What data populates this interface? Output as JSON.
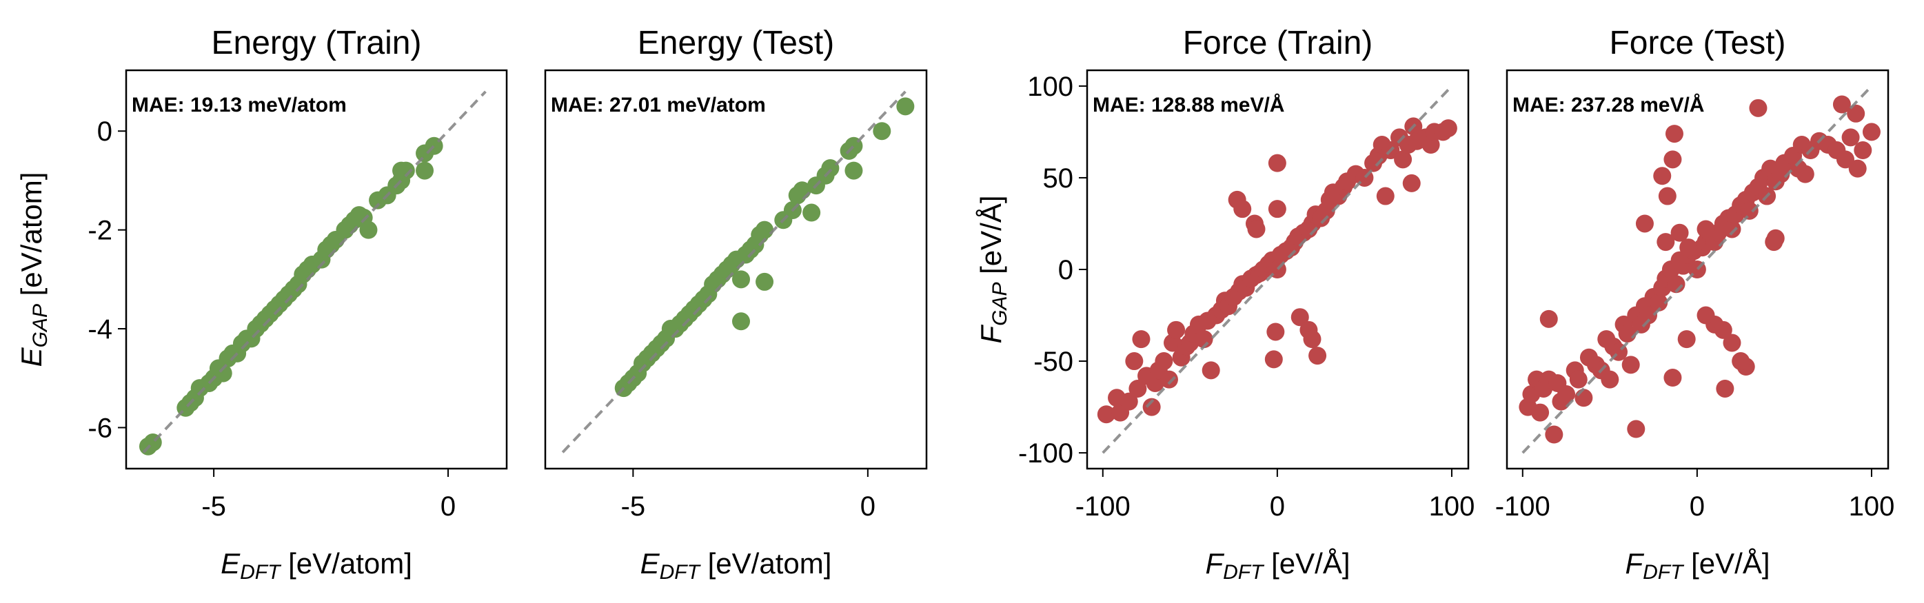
{
  "colors": {
    "energy": "#6a994e",
    "force": "#bc4749",
    "diagonal": "#808080",
    "diagonal_inner": "#222222"
  },
  "chart_data": [
    {
      "type": "scatter",
      "title": "Energy (Train)",
      "annotation": "MAE: 19.13 meV/atom",
      "xlabel": {
        "var": "E",
        "sub": "DFT",
        "unit": " [eV/atom]"
      },
      "ylabel": {
        "var": "E",
        "sub": "GAP",
        "unit": " [eV/atom]"
      },
      "xlim": [
        -6.87,
        1.25
      ],
      "ylim": [
        -6.83,
        1.23
      ],
      "xticks": [
        -5,
        0
      ],
      "xtick_labels": [
        "-5",
        "0"
      ],
      "yticks": [
        0,
        -2,
        -4,
        -6
      ],
      "ytick_labels": [
        "0",
        "-2",
        "-4",
        "-6"
      ],
      "diagonal": [
        -6.5,
        0.8
      ],
      "color_key": "energy",
      "points": [
        [
          -6.4,
          -6.38
        ],
        [
          -6.3,
          -6.3
        ],
        [
          -5.6,
          -5.6
        ],
        [
          -5.5,
          -5.5
        ],
        [
          -5.4,
          -5.4
        ],
        [
          -5.3,
          -5.2
        ],
        [
          -5.1,
          -5.1
        ],
        [
          -5.0,
          -5.0
        ],
        [
          -4.9,
          -4.8
        ],
        [
          -4.8,
          -4.9
        ],
        [
          -4.7,
          -4.6
        ],
        [
          -4.6,
          -4.5
        ],
        [
          -4.5,
          -4.5
        ],
        [
          -4.4,
          -4.3
        ],
        [
          -4.3,
          -4.2
        ],
        [
          -4.2,
          -4.2
        ],
        [
          -4.1,
          -4.0
        ],
        [
          -4.0,
          -3.9
        ],
        [
          -3.9,
          -3.8
        ],
        [
          -3.8,
          -3.7
        ],
        [
          -3.7,
          -3.6
        ],
        [
          -3.6,
          -3.5
        ],
        [
          -3.5,
          -3.4
        ],
        [
          -3.4,
          -3.3
        ],
        [
          -3.3,
          -3.2
        ],
        [
          -3.2,
          -3.1
        ],
        [
          -3.1,
          -2.9
        ],
        [
          -3.0,
          -2.8
        ],
        [
          -2.9,
          -2.7
        ],
        [
          -2.7,
          -2.6
        ],
        [
          -2.6,
          -2.4
        ],
        [
          -2.5,
          -2.3
        ],
        [
          -2.4,
          -2.2
        ],
        [
          -2.2,
          -2.0
        ],
        [
          -2.1,
          -1.9
        ],
        [
          -2.0,
          -1.8
        ],
        [
          -1.9,
          -1.7
        ],
        [
          -1.8,
          -1.75
        ],
        [
          -1.7,
          -2.0
        ],
        [
          -1.5,
          -1.4
        ],
        [
          -1.3,
          -1.3
        ],
        [
          -1.1,
          -1.1
        ],
        [
          -1.0,
          -1.0
        ],
        [
          -1.0,
          -0.8
        ],
        [
          -0.9,
          -0.8
        ],
        [
          -0.5,
          -0.45
        ],
        [
          -0.5,
          -0.8
        ],
        [
          -0.3,
          -0.3
        ]
      ]
    },
    {
      "type": "scatter",
      "title": "Energy (Test)",
      "annotation": "MAE: 27.01 meV/atom",
      "xlabel": {
        "var": "E",
        "sub": "DFT",
        "unit": " [eV/atom]"
      },
      "xlim": [
        -6.87,
        1.25
      ],
      "ylim": [
        -6.83,
        1.23
      ],
      "xticks": [
        -5,
        0
      ],
      "xtick_labels": [
        "-5",
        "0"
      ],
      "diagonal": [
        -6.5,
        0.8
      ],
      "color_key": "energy",
      "points": [
        [
          -5.2,
          -5.2
        ],
        [
          -5.1,
          -5.1
        ],
        [
          -5.0,
          -5.0
        ],
        [
          -4.9,
          -4.9
        ],
        [
          -4.8,
          -4.7
        ],
        [
          -4.7,
          -4.6
        ],
        [
          -4.6,
          -4.5
        ],
        [
          -4.5,
          -4.4
        ],
        [
          -4.4,
          -4.3
        ],
        [
          -4.3,
          -4.2
        ],
        [
          -4.2,
          -4.0
        ],
        [
          -4.1,
          -4.0
        ],
        [
          -4.0,
          -3.9
        ],
        [
          -3.9,
          -3.8
        ],
        [
          -3.8,
          -3.7
        ],
        [
          -3.7,
          -3.6
        ],
        [
          -3.6,
          -3.5
        ],
        [
          -3.5,
          -3.4
        ],
        [
          -3.4,
          -3.3
        ],
        [
          -3.3,
          -3.1
        ],
        [
          -3.2,
          -3.0
        ],
        [
          -3.1,
          -2.9
        ],
        [
          -3.0,
          -2.8
        ],
        [
          -2.9,
          -2.7
        ],
        [
          -2.8,
          -2.6
        ],
        [
          -2.7,
          -3.0
        ],
        [
          -2.6,
          -2.5
        ],
        [
          -2.5,
          -2.4
        ],
        [
          -2.4,
          -2.3
        ],
        [
          -2.3,
          -2.1
        ],
        [
          -2.2,
          -2.0
        ],
        [
          -2.7,
          -3.85
        ],
        [
          -2.2,
          -3.05
        ],
        [
          -1.8,
          -1.8
        ],
        [
          -1.6,
          -1.6
        ],
        [
          -1.5,
          -1.3
        ],
        [
          -1.4,
          -1.2
        ],
        [
          -1.2,
          -1.65
        ],
        [
          -1.1,
          -1.1
        ],
        [
          -0.9,
          -0.9
        ],
        [
          -0.8,
          -0.75
        ],
        [
          -0.4,
          -0.4
        ],
        [
          -0.3,
          -0.3
        ],
        [
          -0.3,
          -0.8
        ],
        [
          0.3,
          0.0
        ],
        [
          0.8,
          0.5
        ]
      ]
    },
    {
      "type": "scatter",
      "title": "Force (Train)",
      "annotation": "MAE: 128.88 meV/Å",
      "xlabel": {
        "var": "F",
        "sub": "DFT",
        "unit": " [eV/Å]"
      },
      "ylabel": {
        "var": "F",
        "sub": "GAP",
        "unit": " [eV/Å]"
      },
      "xlim": [
        -109,
        109.5
      ],
      "ylim": [
        -108.6,
        108.6
      ],
      "xticks": [
        -100,
        0,
        100
      ],
      "xtick_labels": [
        "-100",
        "0",
        "100"
      ],
      "yticks": [
        100,
        50,
        0,
        -50,
        -100
      ],
      "ytick_labels": [
        "100",
        "50",
        "0",
        "-50",
        "-100"
      ],
      "diagonal": [
        -100,
        100
      ],
      "color_key": "force",
      "points": [
        [
          -98,
          -79
        ],
        [
          -90,
          -78
        ],
        [
          -92,
          -70
        ],
        [
          -85,
          -72
        ],
        [
          -80,
          -65
        ],
        [
          -78,
          -38
        ],
        [
          -82,
          -50
        ],
        [
          -75,
          -58
        ],
        [
          -72,
          -75
        ],
        [
          -70,
          -62
        ],
        [
          -68,
          -55
        ],
        [
          -65,
          -50
        ],
        [
          -62,
          -60
        ],
        [
          -60,
          -40
        ],
        [
          -58,
          -33
        ],
        [
          -55,
          -48
        ],
        [
          -52,
          -42
        ],
        [
          -50,
          -40
        ],
        [
          -48,
          -35
        ],
        [
          -45,
          -30
        ],
        [
          -42,
          -38
        ],
        [
          -40,
          -28
        ],
        [
          -38,
          -55
        ],
        [
          -35,
          -25
        ],
        [
          -32,
          -22
        ],
        [
          -30,
          -17
        ],
        [
          -28,
          -20
        ],
        [
          -25,
          -15
        ],
        [
          -22,
          -12
        ],
        [
          -20,
          -8
        ],
        [
          -18,
          -10
        ],
        [
          -15,
          -5
        ],
        [
          -12,
          -3
        ],
        [
          -10,
          -2
        ],
        [
          -8,
          0
        ],
        [
          -5,
          3
        ],
        [
          -3,
          5
        ],
        [
          0,
          0
        ],
        [
          2,
          8
        ],
        [
          5,
          10
        ],
        [
          8,
          12
        ],
        [
          10,
          15
        ],
        [
          12,
          18
        ],
        [
          15,
          20
        ],
        [
          18,
          22
        ],
        [
          20,
          25
        ],
        [
          22,
          30
        ],
        [
          25,
          28
        ],
        [
          28,
          32
        ],
        [
          30,
          38
        ],
        [
          32,
          42
        ],
        [
          35,
          40
        ],
        [
          38,
          45
        ],
        [
          40,
          48
        ],
        [
          45,
          52
        ],
        [
          50,
          50
        ],
        [
          55,
          58
        ],
        [
          58,
          62
        ],
        [
          60,
          68
        ],
        [
          62,
          40
        ],
        [
          65,
          65
        ],
        [
          70,
          72
        ],
        [
          72,
          60
        ],
        [
          75,
          68
        ],
        [
          77,
          47
        ],
        [
          78,
          78
        ],
        [
          80,
          70
        ],
        [
          85,
          72
        ],
        [
          88,
          68
        ],
        [
          90,
          75
        ],
        [
          95,
          75
        ],
        [
          98,
          77
        ],
        [
          -23,
          38
        ],
        [
          -20,
          33
        ],
        [
          -13,
          25
        ],
        [
          -12,
          22
        ],
        [
          0,
          58
        ],
        [
          0,
          33
        ],
        [
          -1,
          -34
        ],
        [
          -2,
          -49
        ],
        [
          13,
          -26
        ],
        [
          18,
          -33
        ],
        [
          20,
          -38
        ],
        [
          23,
          -47
        ]
      ]
    },
    {
      "type": "scatter",
      "title": "Force (Test)",
      "annotation": "MAE: 237.28 meV/Å",
      "xlabel": {
        "var": "F",
        "sub": "DFT",
        "unit": " [eV/Å]"
      },
      "xlim": [
        -109,
        109.5
      ],
      "ylim": [
        -108.6,
        108.6
      ],
      "xticks": [
        -100,
        0,
        100
      ],
      "xtick_labels": [
        "-100",
        "0",
        "100"
      ],
      "diagonal": [
        -100,
        100
      ],
      "color_key": "force",
      "points": [
        [
          -97,
          -75
        ],
        [
          -95,
          -68
        ],
        [
          -92,
          -60
        ],
        [
          -90,
          -78
        ],
        [
          -88,
          -65
        ],
        [
          -85,
          -60
        ],
        [
          -85,
          -27
        ],
        [
          -82,
          -90
        ],
        [
          -80,
          -62
        ],
        [
          -78,
          -72
        ],
        [
          -75,
          -68
        ],
        [
          -70,
          -55
        ],
        [
          -68,
          -60
        ],
        [
          -65,
          -70
        ],
        [
          -62,
          -48
        ],
        [
          -58,
          -52
        ],
        [
          -55,
          -55
        ],
        [
          -52,
          -38
        ],
        [
          -50,
          -60
        ],
        [
          -48,
          -42
        ],
        [
          -45,
          -45
        ],
        [
          -42,
          -30
        ],
        [
          -40,
          -35
        ],
        [
          -38,
          -52
        ],
        [
          -35,
          -87
        ],
        [
          -35,
          -25
        ],
        [
          -32,
          -30
        ],
        [
          -30,
          -20
        ],
        [
          -28,
          -25
        ],
        [
          -25,
          -15
        ],
        [
          -22,
          -18
        ],
        [
          -20,
          -10
        ],
        [
          -18,
          -5
        ],
        [
          -15,
          0
        ],
        [
          -12,
          -8
        ],
        [
          -10,
          5
        ],
        [
          -8,
          2
        ],
        [
          -5,
          8
        ],
        [
          -2,
          10
        ],
        [
          0,
          0
        ],
        [
          3,
          12
        ],
        [
          5,
          15
        ],
        [
          8,
          18
        ],
        [
          10,
          15
        ],
        [
          12,
          20
        ],
        [
          15,
          25
        ],
        [
          18,
          28
        ],
        [
          20,
          22
        ],
        [
          22,
          30
        ],
        [
          25,
          35
        ],
        [
          28,
          38
        ],
        [
          30,
          32
        ],
        [
          32,
          42
        ],
        [
          35,
          45
        ],
        [
          38,
          50
        ],
        [
          40,
          40
        ],
        [
          42,
          55
        ],
        [
          45,
          48
        ],
        [
          48,
          52
        ],
        [
          50,
          58
        ],
        [
          55,
          62
        ],
        [
          58,
          55
        ],
        [
          60,
          68
        ],
        [
          62,
          52
        ],
        [
          65,
          65
        ],
        [
          70,
          70
        ],
        [
          75,
          68
        ],
        [
          80,
          65
        ],
        [
          83,
          90
        ],
        [
          85,
          60
        ],
        [
          88,
          72
        ],
        [
          91,
          85
        ],
        [
          92,
          55
        ],
        [
          95,
          65
        ],
        [
          100,
          75
        ],
        [
          -13,
          74
        ],
        [
          -14,
          60
        ],
        [
          -20,
          51
        ],
        [
          -17,
          40
        ],
        [
          -30,
          25
        ],
        [
          -18,
          15
        ],
        [
          -10,
          20
        ],
        [
          5,
          22
        ],
        [
          -5,
          12
        ],
        [
          45,
          17
        ],
        [
          44,
          15
        ],
        [
          -14,
          -59
        ],
        [
          16,
          -65
        ],
        [
          28,
          -53
        ],
        [
          25,
          -50
        ],
        [
          20,
          -40
        ],
        [
          10,
          -30
        ],
        [
          -6,
          -38
        ],
        [
          35,
          88
        ],
        [
          5,
          -25
        ],
        [
          15,
          -33
        ]
      ]
    }
  ]
}
